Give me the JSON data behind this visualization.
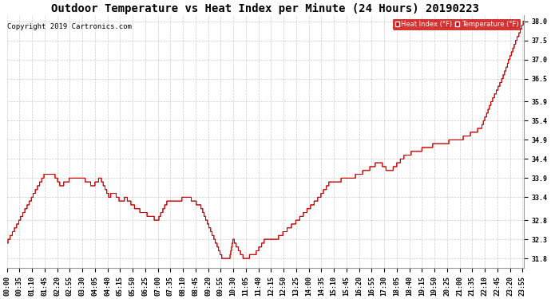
{
  "title": "Outdoor Temperature vs Heat Index per Minute (24 Hours) 20190223",
  "copyright": "Copyright 2019 Cartronics.com",
  "heat_index_label": "Heat Index (°F)",
  "temp_label": "Temperature (°F)",
  "y_ticks": [
    31.8,
    32.3,
    32.8,
    33.4,
    33.9,
    34.4,
    34.9,
    35.4,
    35.9,
    36.5,
    37.0,
    37.5,
    38.0
  ],
  "y_min": 31.55,
  "y_max": 38.15,
  "line_color": "#cc0000",
  "background_color": "#ffffff",
  "grid_color": "#cccccc",
  "title_fontsize": 10,
  "tick_fontsize": 6,
  "copyright_fontsize": 6.5,
  "tick_interval_minutes": 35
}
